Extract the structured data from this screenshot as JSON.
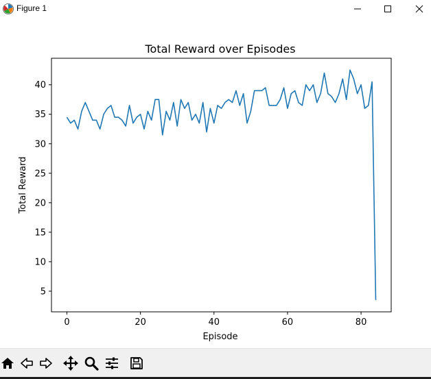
{
  "window": {
    "title": "Figure 1",
    "controls": [
      "minimize",
      "maximize",
      "close"
    ]
  },
  "toolbar": {
    "tools": [
      "home-icon",
      "back-arrow-icon",
      "forward-arrow-icon",
      "pan-icon",
      "zoom-icon",
      "configure-subplots-icon",
      "save-icon"
    ]
  },
  "chart_data": {
    "type": "line",
    "title": "Total Reward over Episodes",
    "xlabel": "Episode",
    "ylabel": "Total Reward",
    "xlim": [
      -4.2,
      88.2
    ],
    "ylim": [
      1.5,
      44.5
    ],
    "xticks": [
      0,
      20,
      40,
      60,
      80
    ],
    "yticks": [
      5,
      10,
      15,
      20,
      25,
      30,
      35,
      40
    ],
    "color": "#1f77b4",
    "grid": false,
    "series": [
      {
        "x": [
          0,
          1,
          2,
          3,
          4,
          5,
          6,
          7,
          8,
          9,
          10,
          11,
          12,
          13,
          14,
          15,
          16,
          17,
          18,
          19,
          20,
          21,
          22,
          23,
          24,
          25,
          26,
          27,
          28,
          29,
          30,
          31,
          32,
          33,
          34,
          35,
          36,
          37,
          38,
          39,
          40,
          41,
          42,
          43,
          44,
          45,
          46,
          47,
          48,
          49,
          50,
          51,
          52,
          53,
          54,
          55,
          56,
          57,
          58,
          59,
          60,
          61,
          62,
          63,
          64,
          65,
          66,
          67,
          68,
          69,
          70,
          71,
          72,
          73,
          74,
          75,
          76,
          77,
          78,
          79,
          80,
          81,
          82,
          83,
          84
        ],
        "y": [
          34.5,
          33.5,
          34,
          32.5,
          35.5,
          37,
          35.5,
          34,
          34,
          32.5,
          35,
          36,
          36.5,
          34.5,
          34.5,
          34,
          33,
          36.5,
          33.5,
          34.5,
          35,
          32.5,
          35.5,
          34,
          37.5,
          37.5,
          31.5,
          35.5,
          34,
          37,
          33,
          37.5,
          36,
          37,
          34,
          35,
          33.5,
          37,
          32,
          36,
          33.5,
          36.5,
          36,
          37,
          37.5,
          37,
          39,
          36.5,
          38.5,
          33.5,
          35.5,
          39,
          39,
          39,
          39.5,
          36.5,
          36.5,
          36.5,
          37.5,
          39.5,
          36,
          38.5,
          39,
          37,
          36.5,
          40,
          39,
          40,
          37,
          38.5,
          42,
          38.5,
          38,
          37,
          38.5,
          41,
          37.5,
          42.5,
          41,
          38.5,
          40,
          36,
          36.5,
          40.5,
          3.5
        ]
      }
    ]
  }
}
